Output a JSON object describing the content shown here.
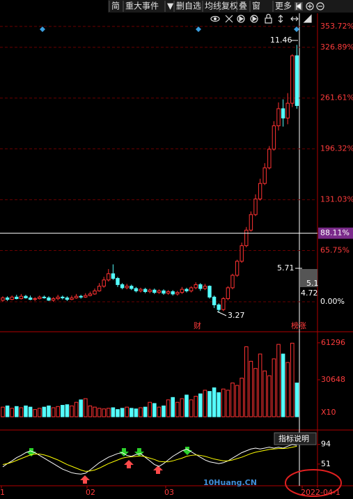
{
  "toolbar": {
    "items": [
      "简",
      "重大事件",
      "▼",
      "删自选",
      "均线",
      "复权",
      "叠",
      "窗",
      "更多"
    ]
  },
  "chart_data": [
    {
      "type": "candlestick",
      "ohlc": [
        [
          2,
          5,
          7,
          0
        ],
        [
          5,
          3,
          7,
          1
        ],
        [
          3,
          6,
          8,
          2
        ],
        [
          6,
          4,
          9,
          3
        ],
        [
          4,
          7,
          10,
          3
        ],
        [
          7,
          5,
          9,
          4
        ],
        [
          5,
          3,
          8,
          2
        ],
        [
          3,
          4,
          6,
          1
        ],
        [
          4,
          6,
          8,
          3
        ],
        [
          6,
          5,
          8,
          4
        ],
        [
          5,
          2,
          7,
          1
        ],
        [
          2,
          4,
          6,
          0
        ],
        [
          4,
          6,
          9,
          2
        ],
        [
          6,
          5,
          8,
          3
        ],
        [
          5,
          3,
          7,
          1
        ],
        [
          3,
          5,
          8,
          2
        ],
        [
          5,
          7,
          10,
          4
        ],
        [
          7,
          6,
          9,
          4
        ],
        [
          6,
          8,
          11,
          5
        ],
        [
          8,
          10,
          13,
          7
        ],
        [
          10,
          14,
          17,
          9
        ],
        [
          14,
          20,
          24,
          13
        ],
        [
          20,
          28,
          32,
          18
        ],
        [
          28,
          36,
          42,
          26
        ],
        [
          36,
          30,
          48,
          28
        ],
        [
          30,
          22,
          32,
          19
        ],
        [
          22,
          18,
          24,
          16
        ],
        [
          18,
          20,
          23,
          16
        ],
        [
          20,
          17,
          22,
          15
        ],
        [
          17,
          14,
          19,
          12
        ],
        [
          14,
          16,
          18,
          12
        ],
        [
          16,
          13,
          18,
          11
        ],
        [
          13,
          15,
          17,
          11
        ],
        [
          15,
          12,
          17,
          10
        ],
        [
          12,
          14,
          16,
          10
        ],
        [
          14,
          11,
          16,
          9
        ],
        [
          11,
          13,
          15,
          9
        ],
        [
          13,
          10,
          15,
          8
        ],
        [
          10,
          12,
          14,
          8
        ],
        [
          12,
          16,
          19,
          10
        ],
        [
          16,
          14,
          18,
          12
        ],
        [
          14,
          18,
          20,
          12
        ],
        [
          18,
          22,
          25,
          16
        ],
        [
          22,
          17,
          24,
          14
        ],
        [
          17,
          20,
          23,
          15
        ],
        [
          20,
          6,
          21,
          4
        ],
        [
          6,
          -4,
          8,
          -8
        ],
        [
          -4,
          -10,
          -2,
          -14
        ],
        [
          -10,
          4,
          6,
          -12
        ],
        [
          4,
          18,
          20,
          2
        ],
        [
          18,
          34,
          36,
          16
        ],
        [
          34,
          52,
          54,
          32
        ],
        [
          52,
          72,
          76,
          50
        ],
        [
          72,
          92,
          96,
          70
        ],
        [
          92,
          112,
          116,
          90
        ],
        [
          112,
          132,
          138,
          110
        ],
        [
          132,
          152,
          158,
          130
        ],
        [
          152,
          172,
          178,
          150
        ],
        [
          172,
          196,
          200,
          170
        ],
        [
          196,
          226,
          232,
          194
        ],
        [
          226,
          248,
          256,
          220
        ],
        [
          248,
          236,
          260,
          225
        ],
        [
          236,
          255,
          268,
          228
        ],
        [
          255,
          316,
          318,
          250
        ],
        [
          316,
          252,
          330,
          248
        ]
      ],
      "up_color": "#ff3232",
      "down_color": "#54fcfc",
      "ylim": [
        -37.6,
        369.7
      ],
      "yticks": [
        {
          "value": 353.72,
          "label": "353.72%"
        },
        {
          "value": 326.89,
          "label": "326.89%"
        },
        {
          "value": 261.61,
          "label": "261.61%"
        },
        {
          "value": 196.32,
          "label": "196.32%"
        },
        {
          "value": 131.03,
          "label": "131.03%"
        },
        {
          "value": 65.75,
          "label": "65.75%"
        },
        {
          "value": 0,
          "label": "0.00%"
        }
      ],
      "grid": true,
      "crosshair": {
        "value": 88.11,
        "label": "88.11%"
      },
      "annotations": [
        "11.46",
        "5.71",
        "5.1",
        "4.72",
        "3.27",
        "财",
        "榜涨"
      ]
    },
    {
      "type": "bar",
      "values": [
        8000,
        9000,
        7000,
        8500,
        7500,
        9000,
        8000,
        6000,
        7000,
        8000,
        9000,
        7500,
        8500,
        9500,
        10000,
        9000,
        12000,
        14000,
        15000,
        9000,
        8000,
        7000,
        6500,
        7000,
        7500,
        6000,
        7000,
        8000,
        7000,
        6500,
        7500,
        8000,
        12000,
        11000,
        8000,
        9000,
        14000,
        16000,
        12000,
        15000,
        18000,
        14000,
        17000,
        19000,
        22000,
        21000,
        24000,
        20000,
        23000,
        22000,
        28000,
        26000,
        32000,
        58000,
        46000,
        40000,
        52000,
        38000,
        34000,
        48000,
        60000,
        52000,
        45000,
        61000,
        28000
      ],
      "ylim": [
        0,
        67000
      ],
      "yticks": [
        30648,
        61296
      ],
      "unit_label": "X10"
    },
    {
      "type": "line",
      "title": "指标说明",
      "series": [
        {
          "color": "#ffffff",
          "values": [
            45,
            52,
            58,
            65,
            70,
            76,
            80,
            76,
            70,
            64,
            58,
            52,
            46,
            40,
            36,
            32,
            30,
            29,
            31,
            38,
            46,
            54,
            60,
            66,
            70,
            74,
            76,
            70,
            68,
            72,
            74,
            66,
            58,
            50,
            46,
            52,
            60,
            68,
            74,
            80,
            84,
            78,
            72,
            66,
            60,
            56,
            54,
            52,
            54,
            58,
            64,
            70,
            76,
            80,
            84,
            86,
            84,
            86,
            88,
            86,
            88,
            86,
            90,
            94,
            92
          ]
        },
        {
          "color": "#ffff00",
          "values": [
            50,
            52,
            55,
            59,
            63,
            67,
            71,
            73,
            73,
            71,
            68,
            64,
            60,
            55,
            50,
            46,
            42,
            38,
            35,
            36,
            38,
            42,
            47,
            52,
            56,
            60,
            64,
            66,
            67,
            68,
            69,
            67,
            64,
            61,
            57,
            56,
            56,
            58,
            61,
            64,
            68,
            70,
            71,
            70,
            68,
            65,
            62,
            60,
            58,
            58,
            60,
            63,
            66,
            70,
            74,
            77,
            79,
            81,
            83,
            84,
            85,
            85,
            86,
            88,
            90
          ]
        }
      ],
      "ylim": [
        5,
        118
      ],
      "yticks": [
        51,
        94
      ]
    }
  ],
  "x_labels": [
    "1",
    "02",
    "03",
    "2022-04-1"
  ],
  "watermark": "10Huang.CN"
}
